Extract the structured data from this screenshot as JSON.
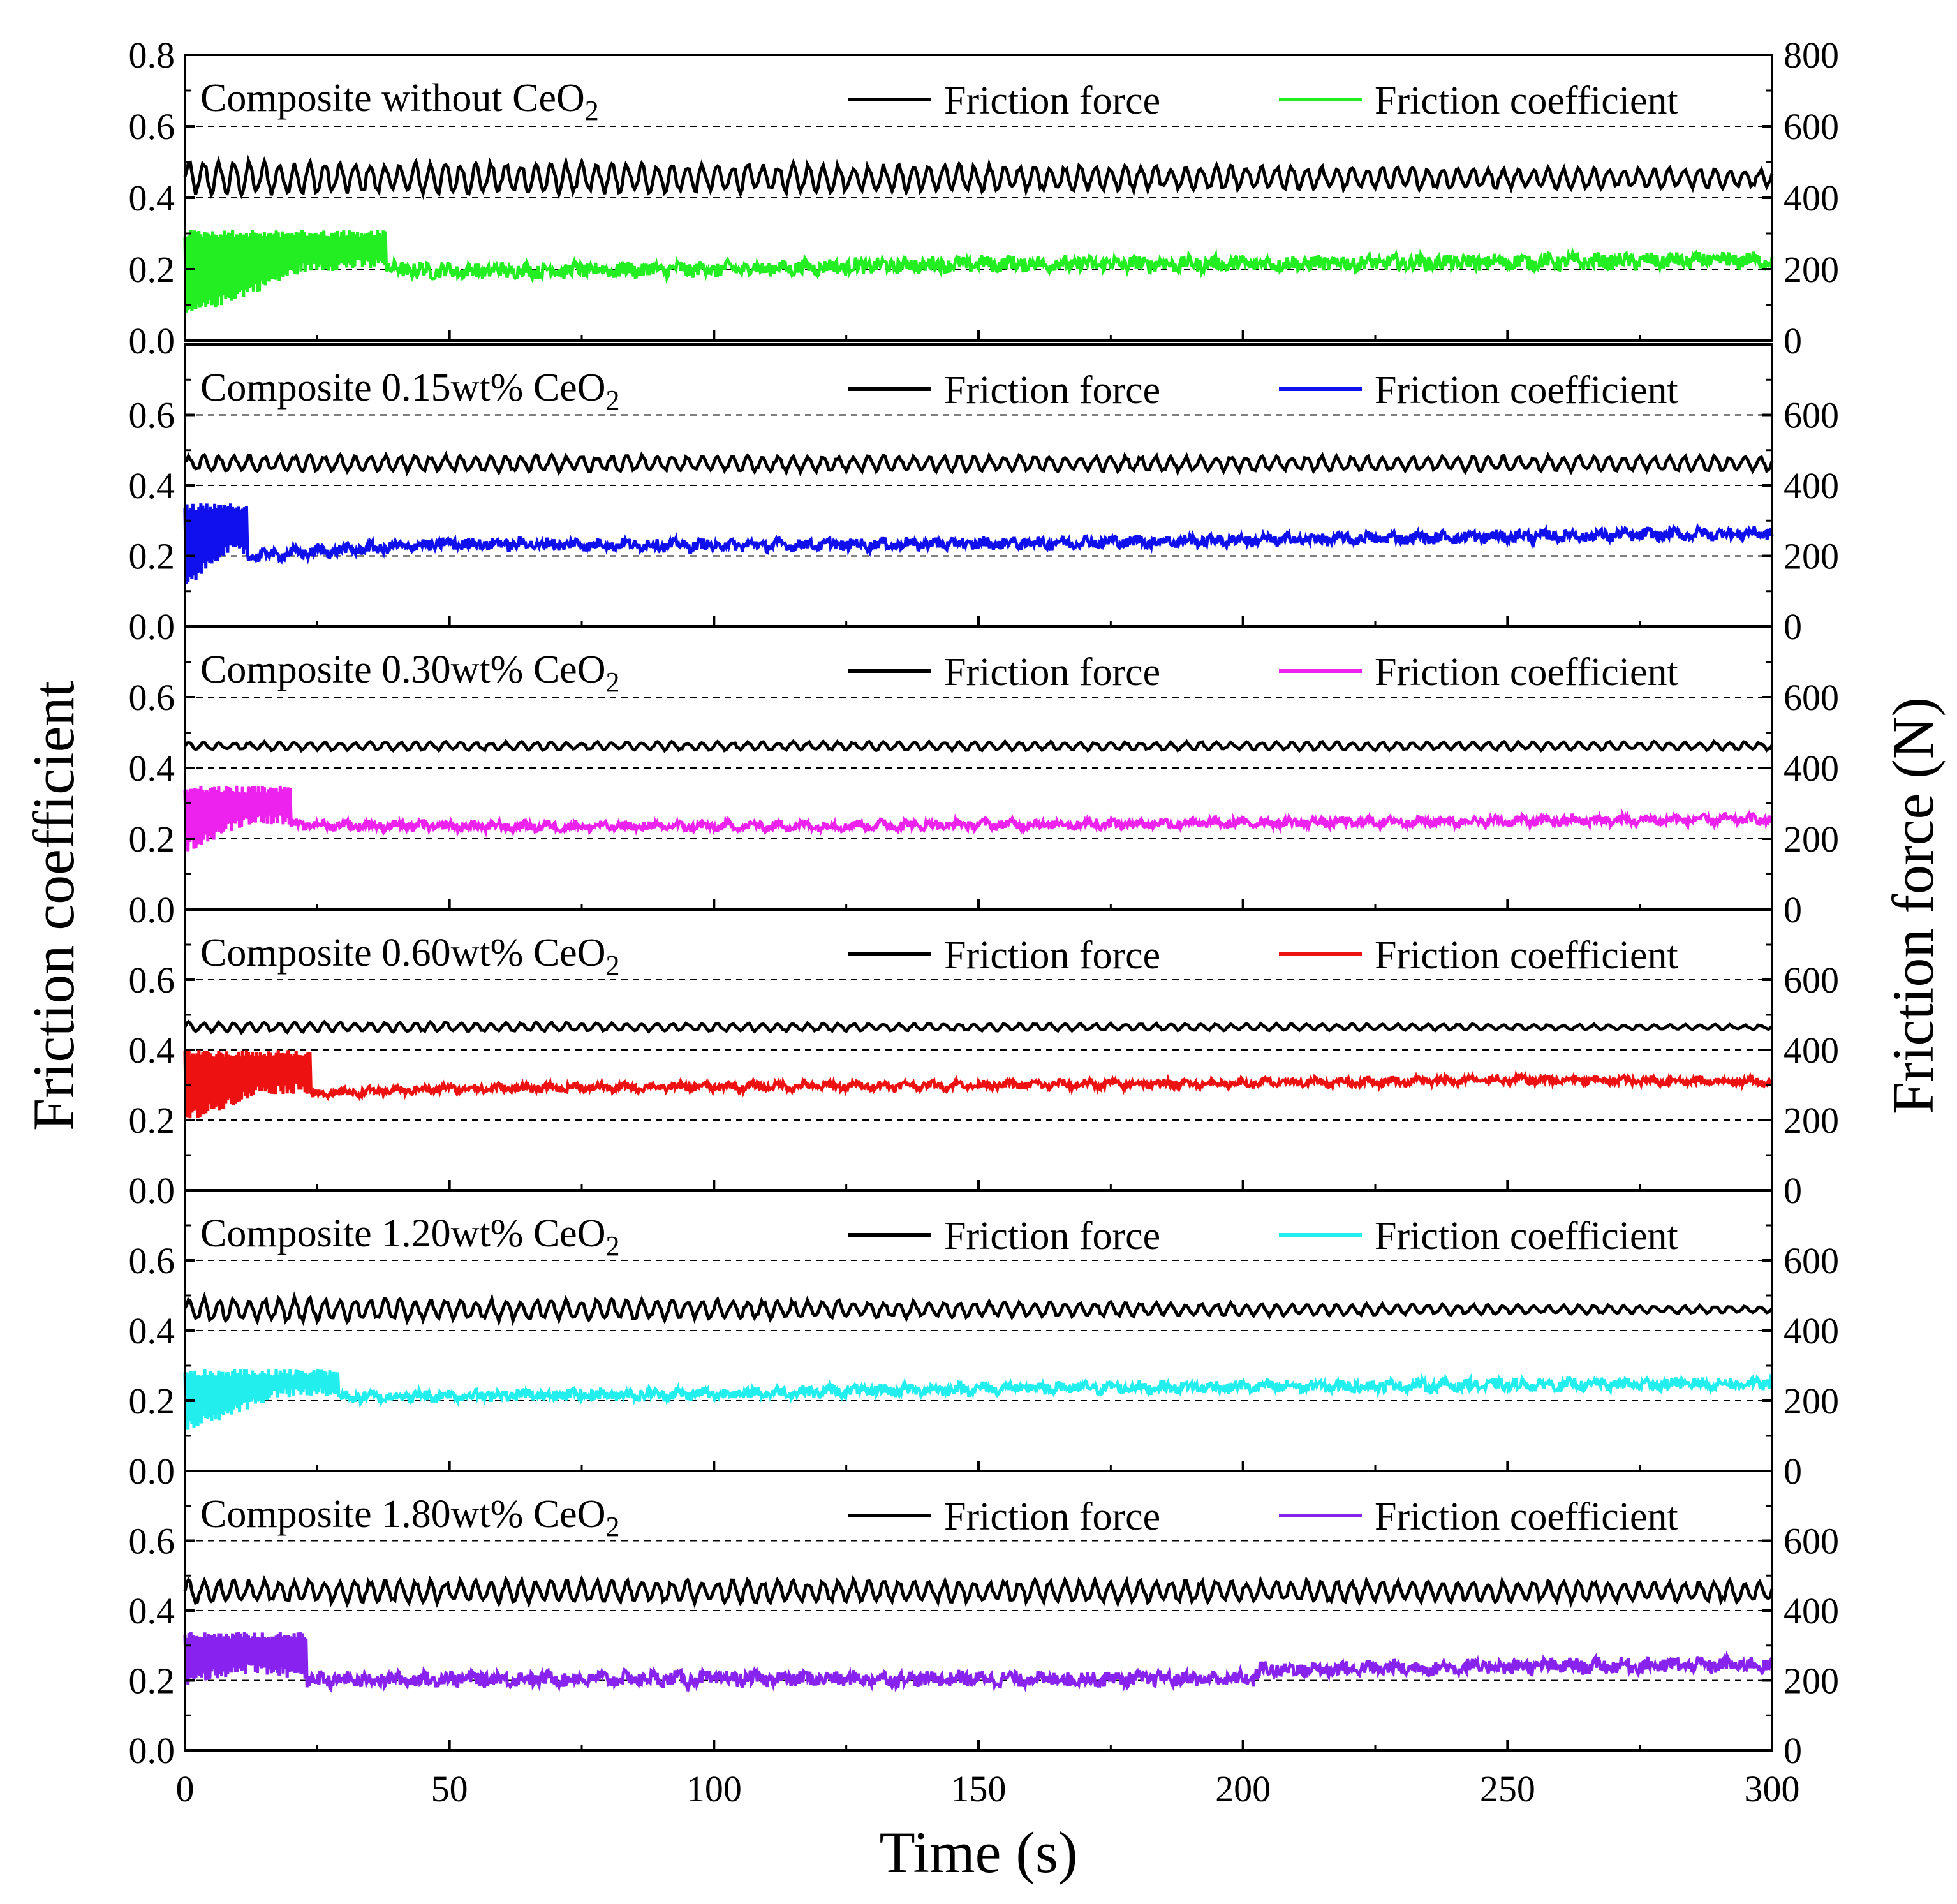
{
  "chart_data": {
    "type": "line",
    "xlabel": "Time (s)",
    "ylabel": "Friction coefficient",
    "y2label": "Friction force (N)",
    "xlim": [
      0,
      300
    ],
    "x_ticks": [
      0,
      50,
      100,
      150,
      200,
      250,
      300
    ],
    "ylim": [
      0.0,
      0.8
    ],
    "y2lim": [
      0,
      800
    ],
    "y_ticks_labels_top_panel": [
      "0.0",
      "0.2",
      "0.4",
      "0.6",
      "0.8"
    ],
    "y_ticks_labels": [
      "0.0",
      "0.2",
      "0.4",
      "0.6"
    ],
    "y2_ticks_labels_top_panel": [
      "0",
      "200",
      "400",
      "600",
      "800"
    ],
    "y2_ticks_labels": [
      "0",
      "200",
      "400",
      "600"
    ],
    "dashed_gridlines_y": [
      0.2,
      0.4,
      0.6,
      0.8
    ],
    "legend": {
      "force_label": "Friction force",
      "coef_label": "Friction coefficient",
      "placement": "top-right"
    },
    "panels": [
      {
        "title": "Composite without CeO",
        "subscript": "2",
        "coef_color": "#22ee22",
        "force": {
          "mean": 0.455,
          "amp_start": 0.04,
          "amp_end": 0.022
        },
        "coef": {
          "run_in_end": 38,
          "run_in_low": 0.06,
          "run_in_high": 0.31,
          "x": [
            0,
            38,
            50,
            100,
            150,
            200,
            250,
            300
          ],
          "y": [
            0.18,
            0.2,
            0.195,
            0.2,
            0.215,
            0.215,
            0.22,
            0.225
          ],
          "noise": 0.02
        }
      },
      {
        "title": "Composite 0.15wt% CeO",
        "subscript": "2",
        "coef_color": "#1010ee",
        "force": {
          "mean": 0.462,
          "amp_start": 0.02,
          "amp_end": 0.018
        },
        "coef": {
          "run_in_end": 12,
          "run_in_low": 0.1,
          "run_in_high": 0.35,
          "x": [
            0,
            12,
            50,
            100,
            150,
            200,
            250,
            300
          ],
          "y": [
            0.2,
            0.2,
            0.235,
            0.23,
            0.235,
            0.245,
            0.255,
            0.265
          ],
          "noise": 0.015
        }
      },
      {
        "title": "Composite 0.30wt% CeO",
        "subscript": "2",
        "coef_color": "#ee22ee",
        "force": {
          "mean": 0.462,
          "amp_start": 0.01,
          "amp_end": 0.01
        },
        "coef": {
          "run_in_end": 20,
          "run_in_low": 0.16,
          "run_in_high": 0.35,
          "x": [
            0,
            20,
            50,
            100,
            150,
            200,
            250,
            300
          ],
          "y": [
            0.24,
            0.24,
            0.235,
            0.235,
            0.24,
            0.245,
            0.25,
            0.255
          ],
          "noise": 0.012
        }
      },
      {
        "title": "Composite 0.60wt% CeO",
        "subscript": "2",
        "coef_color": "#ee1111",
        "force": {
          "mean": 0.465,
          "amp_start": 0.012,
          "amp_end": 0.006
        },
        "coef": {
          "run_in_end": 24,
          "run_in_low": 0.19,
          "run_in_high": 0.4,
          "x": [
            0,
            24,
            50,
            100,
            150,
            200,
            250,
            300
          ],
          "y": [
            0.27,
            0.275,
            0.29,
            0.295,
            0.3,
            0.305,
            0.315,
            0.31
          ],
          "noise": 0.01
        }
      },
      {
        "title": "Composite 1.20wt% CeO",
        "subscript": "2",
        "coef_color": "#22eeee",
        "force": {
          "mean": 0.46,
          "amp_start": 0.03,
          "amp_end": 0.008
        },
        "coef": {
          "run_in_end": 29,
          "run_in_low": 0.11,
          "run_in_high": 0.29,
          "x": [
            0,
            29,
            50,
            100,
            150,
            200,
            250,
            300
          ],
          "y": [
            0.2,
            0.21,
            0.215,
            0.22,
            0.235,
            0.24,
            0.245,
            0.25
          ],
          "noise": 0.015
        }
      },
      {
        "title": "Composite 1.80wt% CeO",
        "subscript": "2",
        "coef_color": "#8822ee",
        "force": {
          "mean": 0.455,
          "amp_start": 0.028,
          "amp_end": 0.025
        },
        "coef": {
          "run_in_end": 23,
          "run_in_low": 0.18,
          "run_in_high": 0.34,
          "x": [
            0,
            23,
            50,
            100,
            150,
            202,
            203,
            250,
            300
          ],
          "y": [
            0.25,
            0.2,
            0.205,
            0.205,
            0.205,
            0.205,
            0.23,
            0.24,
            0.245
          ],
          "noise": 0.02
        }
      }
    ]
  }
}
